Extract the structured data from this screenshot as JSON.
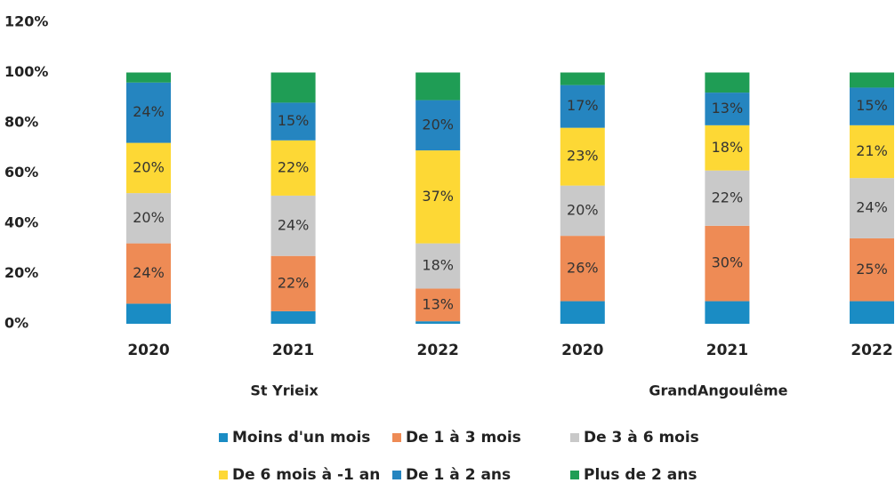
{
  "chart_data": {
    "type": "stacked_bar",
    "categories": [
      "2020",
      "2021",
      "2022",
      "2020",
      "2021",
      "2022"
    ],
    "group_labels": [
      "St Yrieix",
      "GrandAngoulême"
    ],
    "ylim": [
      0,
      120
    ],
    "yticks": [
      {
        "value": 0,
        "label": "0%"
      },
      {
        "value": 20,
        "label": "20%"
      },
      {
        "value": 40,
        "label": "40%"
      },
      {
        "value": 60,
        "label": "60%"
      },
      {
        "value": 80,
        "label": "80%"
      },
      {
        "value": 100,
        "label": "100%"
      },
      {
        "value": 120,
        "label": "120%"
      }
    ],
    "grid": false,
    "legend": "bottom",
    "series": [
      {
        "name": "Moins d'un mois",
        "color": "#1a8cc4",
        "values": [
          8,
          5,
          1,
          9,
          9,
          9
        ],
        "value_labels": [
          null,
          null,
          null,
          null,
          null,
          null
        ]
      },
      {
        "name": "De 1 à 3 mois",
        "color": "#ee8b55",
        "values": [
          24,
          22,
          13,
          26,
          30,
          25
        ],
        "value_labels": [
          "24%",
          "22%",
          "13%",
          "26%",
          "30%",
          "25%"
        ]
      },
      {
        "name": "De 3 à 6 mois",
        "color": "#c9c9c9",
        "values": [
          20,
          24,
          18,
          20,
          22,
          24
        ],
        "value_labels": [
          "20%",
          "24%",
          "18%",
          "20%",
          "22%",
          "24%"
        ]
      },
      {
        "name": "De 6 mois à -1 an",
        "color": "#fdd835",
        "values": [
          20,
          22,
          37,
          23,
          18,
          21
        ],
        "value_labels": [
          "20%",
          "22%",
          "37%",
          "23%",
          "18%",
          "21%"
        ]
      },
      {
        "name": "De 1 à 2 ans",
        "color": "#2585c0",
        "values": [
          24,
          15,
          20,
          17,
          13,
          15
        ],
        "value_labels": [
          "24%",
          "15%",
          "20%",
          "17%",
          "13%",
          "15%"
        ]
      },
      {
        "name": "Plus de 2 ans",
        "color": "#1f9d55",
        "values": [
          4,
          12,
          11,
          5,
          8,
          6
        ],
        "value_labels": [
          null,
          null,
          null,
          null,
          null,
          null
        ]
      }
    ]
  }
}
